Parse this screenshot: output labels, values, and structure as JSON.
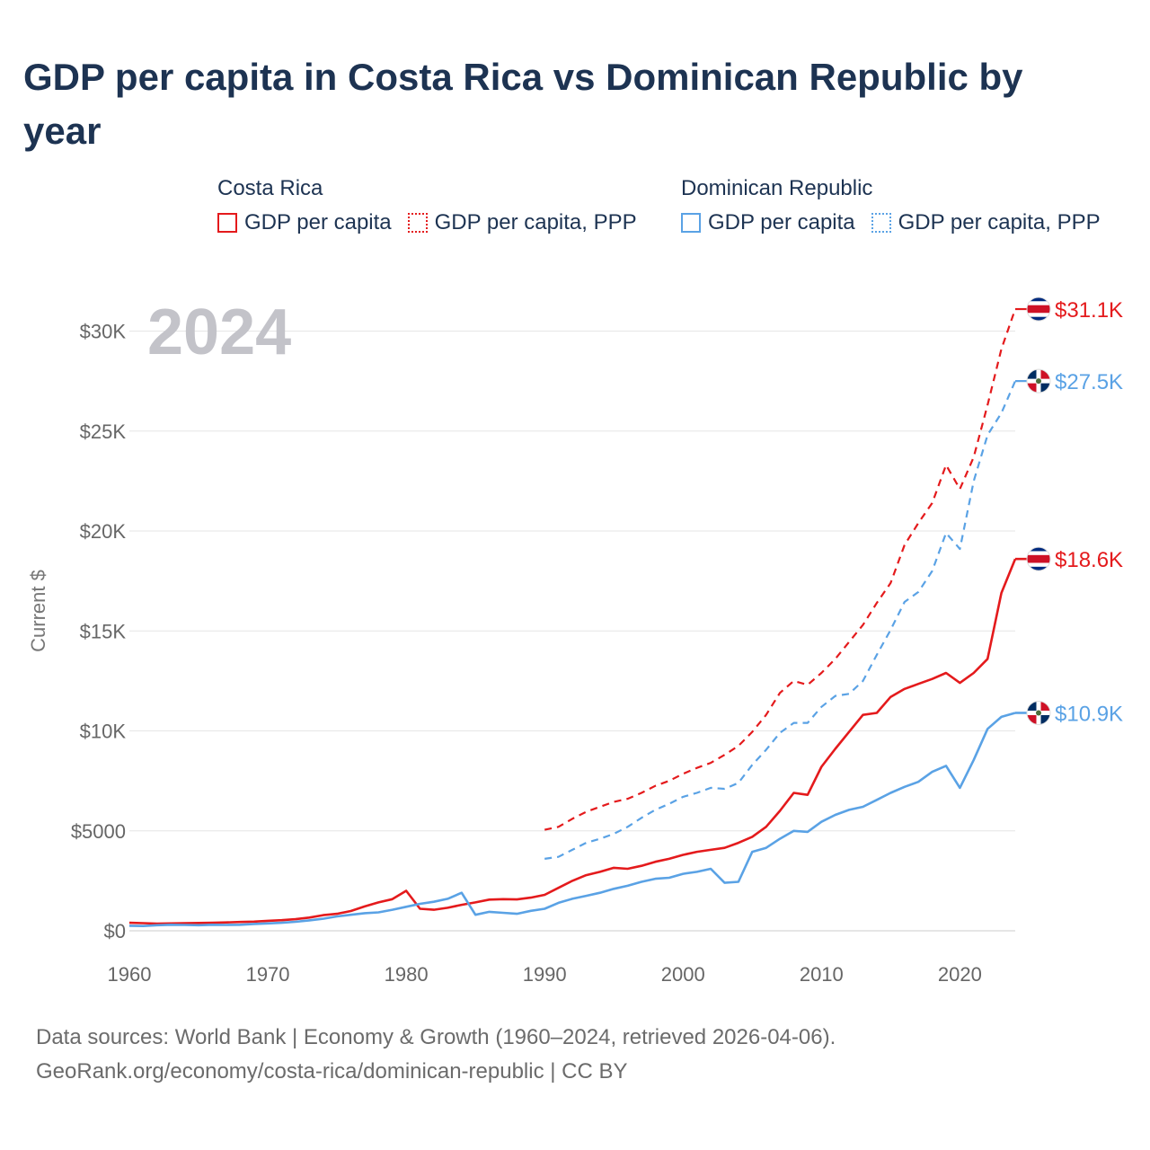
{
  "title": "GDP per capita in Costa Rica vs Dominican Republic by year",
  "legend": [
    {
      "country": "Costa Rica",
      "items": [
        {
          "label": "GDP per capita",
          "style": "solid",
          "color": "#e41a1c"
        },
        {
          "label": "GDP per capita, PPP",
          "style": "dotted",
          "color": "#e41a1c"
        }
      ]
    },
    {
      "country": "Dominican Republic",
      "items": [
        {
          "label": "GDP per capita",
          "style": "solid",
          "color": "#5aa2e5"
        },
        {
          "label": "GDP per capita, PPP",
          "style": "dotted",
          "color": "#5aa2e5"
        }
      ]
    }
  ],
  "footer": {
    "line1": "Data sources: World Bank | Economy & Growth (1960–2024, retrieved 2026-04-06).",
    "line2": "GeoRank.org/economy/costa-rica/dominican-republic | CC BY"
  },
  "chart_data": {
    "type": "line",
    "title": "GDP per capita in Costa Rica vs Dominican Republic by year",
    "year_label": "2024",
    "xlabel": "",
    "ylabel": "Current $",
    "xlim": [
      1960,
      2024
    ],
    "ylim": [
      0,
      32000
    ],
    "x_ticks": [
      1960,
      1970,
      1980,
      1990,
      2000,
      2010,
      2020
    ],
    "y_ticks": [
      {
        "value": 0,
        "label": "$0"
      },
      {
        "value": 5000,
        "label": "$5000"
      },
      {
        "value": 10000,
        "label": "$10K"
      },
      {
        "value": 15000,
        "label": "$15K"
      },
      {
        "value": 20000,
        "label": "$20K"
      },
      {
        "value": 25000,
        "label": "$25K"
      },
      {
        "value": 30000,
        "label": "$30K"
      }
    ],
    "grid": true,
    "series": [
      {
        "name": "Costa Rica — GDP per capita",
        "country": "Costa Rica",
        "color": "#e41a1c",
        "dash": false,
        "start_year": 1960,
        "end_label": "$18.6K",
        "end_icon": "costa-rica-flag-icon",
        "values": [
          400,
          380,
          360,
          370,
          380,
          390,
          400,
          420,
          440,
          460,
          500,
          530,
          580,
          660,
          780,
          850,
          990,
          1220,
          1420,
          1580,
          2000,
          1100,
          1050,
          1150,
          1300,
          1420,
          1560,
          1580,
          1570,
          1660,
          1800,
          2150,
          2500,
          2780,
          2950,
          3150,
          3100,
          3250,
          3450,
          3600,
          3800,
          3950,
          4050,
          4150,
          4400,
          4700,
          5200,
          6000,
          6900,
          6800,
          8200,
          9100,
          9950,
          10800,
          10900,
          11700,
          12100,
          12350,
          12600,
          12900,
          12400,
          12900,
          13600,
          16900,
          18600
        ]
      },
      {
        "name": "Costa Rica — GDP per capita, PPP",
        "country": "Costa Rica",
        "color": "#e41a1c",
        "dash": true,
        "start_year": 1990,
        "end_label": "$31.1K",
        "end_icon": "costa-rica-flag-icon",
        "values": [
          5050,
          5200,
          5600,
          5950,
          6200,
          6450,
          6600,
          6900,
          7250,
          7500,
          7850,
          8150,
          8400,
          8800,
          9250,
          9950,
          10800,
          11900,
          12500,
          12300,
          12900,
          13600,
          14450,
          15300,
          16400,
          17400,
          19300,
          20400,
          21400,
          23300,
          22100,
          23700,
          26300,
          29100,
          31100
        ]
      },
      {
        "name": "Dominican Republic — GDP per capita",
        "country": "Dominican Republic",
        "color": "#5aa2e5",
        "dash": false,
        "start_year": 1960,
        "end_label": "$10.9K",
        "end_icon": "dominican-republic-flag-icon",
        "values": [
          250,
          240,
          280,
          300,
          290,
          280,
          300,
          290,
          300,
          340,
          370,
          400,
          450,
          520,
          600,
          720,
          800,
          880,
          920,
          1050,
          1200,
          1350,
          1450,
          1600,
          1900,
          800,
          950,
          900,
          850,
          1000,
          1100,
          1400,
          1600,
          1750,
          1900,
          2100,
          2250,
          2450,
          2600,
          2650,
          2850,
          2950,
          3100,
          2400,
          2450,
          3950,
          4150,
          4600,
          5000,
          4950,
          5450,
          5800,
          6050,
          6200,
          6550,
          6900,
          7200,
          7450,
          7950,
          8250,
          7150,
          8550,
          10100,
          10700,
          10900
        ]
      },
      {
        "name": "Dominican Republic — GDP per capita, PPP",
        "country": "Dominican Republic",
        "color": "#5aa2e5",
        "dash": true,
        "start_year": 1990,
        "end_label": "$27.5K",
        "end_icon": "dominican-republic-flag-icon",
        "values": [
          3600,
          3700,
          4050,
          4400,
          4600,
          4850,
          5200,
          5650,
          6050,
          6350,
          6700,
          6900,
          7150,
          7100,
          7400,
          8300,
          9050,
          9900,
          10400,
          10400,
          11200,
          11750,
          11850,
          12500,
          13800,
          15050,
          16450,
          16950,
          18000,
          19900,
          19100,
          22500,
          24800,
          25900,
          27500
        ]
      }
    ]
  }
}
